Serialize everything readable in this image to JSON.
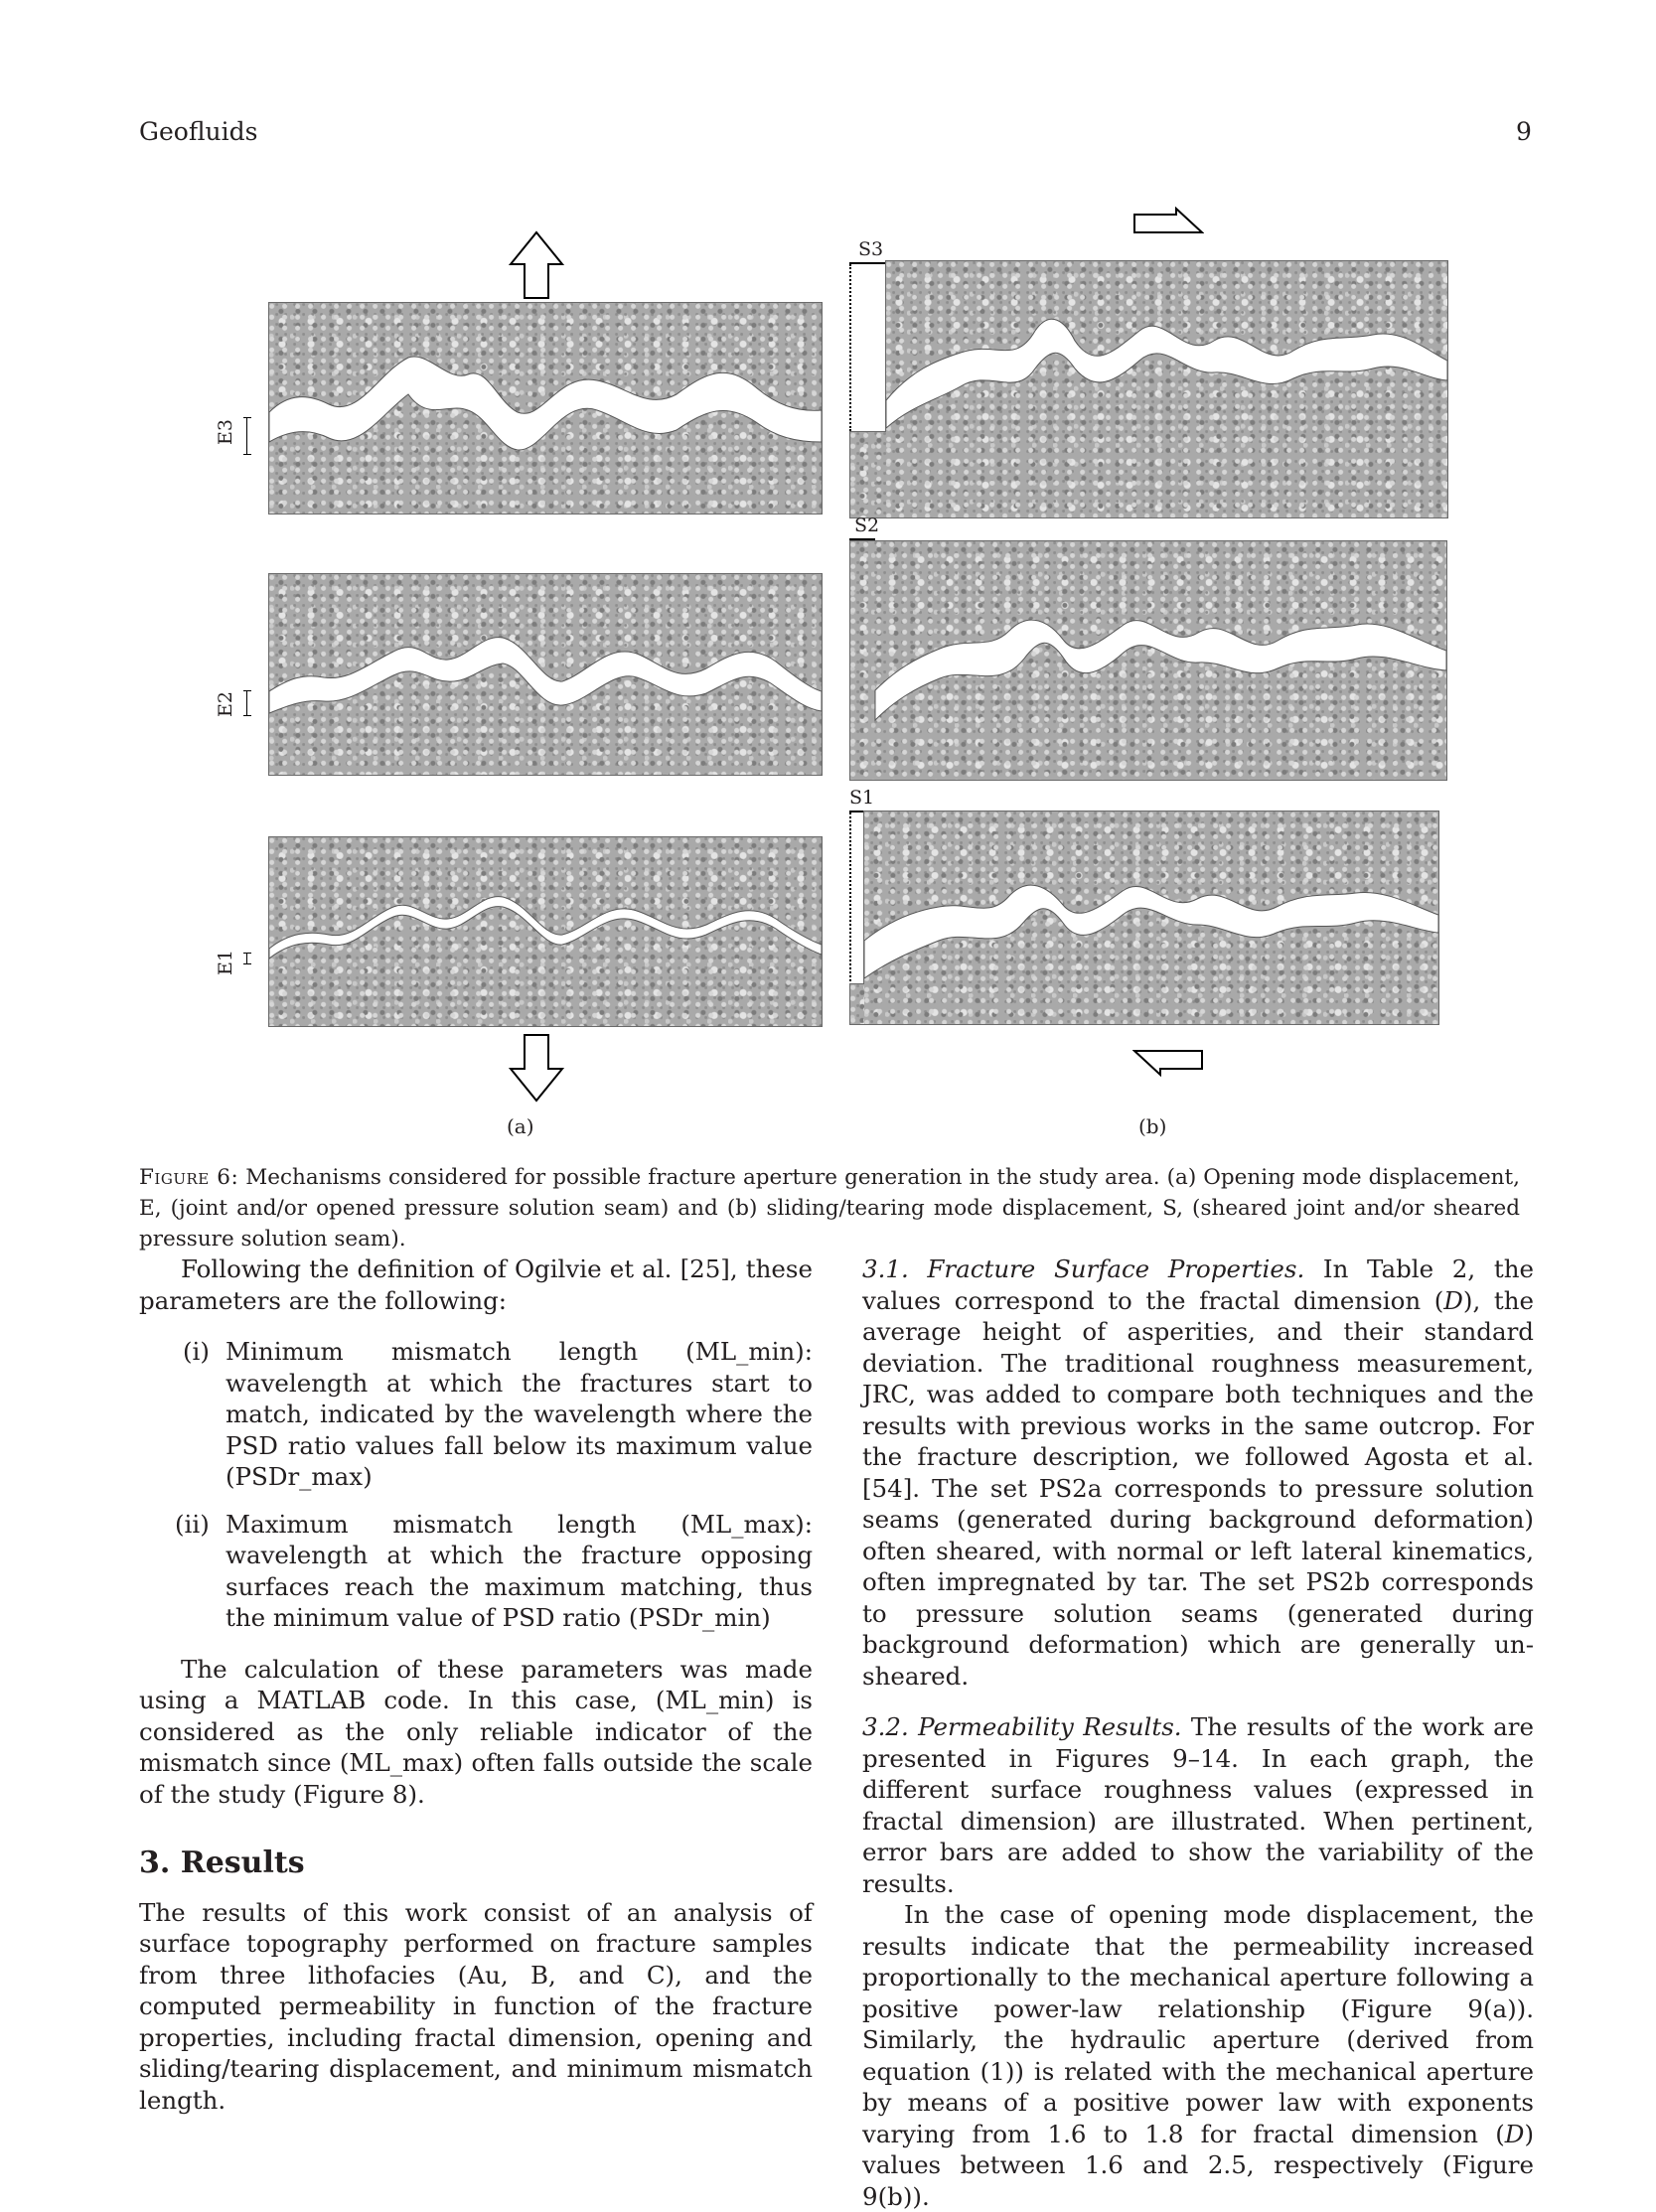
{
  "header": {
    "journal": "Geofluids",
    "page": "9"
  },
  "figure": {
    "panel_a_label": "(a)",
    "panel_b_label": "(b)",
    "opening_labels": [
      "E3",
      "E2",
      "E1"
    ],
    "sliding_labels": [
      "S3",
      "S2",
      "S1"
    ],
    "caption_label": "Figure 6:",
    "caption_text": "Mechanisms considered for possible fracture aperture generation in the study area. (a) Opening mode displacement, E, (joint and/or opened pressure solution seam) and (b) sliding/tearing mode displacement, S, (sheared joint and/or sheared pressure solution seam)."
  },
  "left_column": {
    "intro": "Following the definition of Ogilvie et al. [25], these parameters are the following:",
    "list": [
      {
        "num": "(i)",
        "text": "Minimum mismatch length (ML_min): wavelength at which the fractures start to match, indicated by the wavelength where the PSD ratio values fall below its maximum value (PSDr_max)"
      },
      {
        "num": "(ii)",
        "text": "Maximum mismatch length (ML_max): wavelength at which the fracture opposing surfaces reach the maximum matching, thus the minimum value of PSD ratio (PSDr_min)"
      }
    ],
    "calc": "The calculation of these parameters was made using a MATLAB code. In this case, (ML_min) is considered as the only reliable indicator of the mismatch since (ML_max) often falls outside the scale of the study (Figure 8).",
    "section_heading": "3. Results",
    "results": "The results of this work consist of an analysis of surface topography performed on fracture samples from three lithofacies (Au, B, and C), and the computed permeability in function of the fracture properties, including fractal dimension, opening and sliding/tearing displacement, and minimum mismatch length."
  },
  "right_column": {
    "s31_title": "3.1. Fracture Surface Properties.",
    "s31_a": " In Table 2, the values correspond to the fractal dimension (",
    "s31_D": "D",
    "s31_b": "), the average height of asperities, and their standard deviation. The traditional roughness measurement, JRC, was added to compare both techniques and the results with previous works in the same outcrop. For the fracture description, we followed Agosta et al. [54]. The set PS2a corresponds to pressure solution seams (generated during background deformation) often sheared, with normal or left lateral kinematics, often impregnated by tar. The set PS2b corresponds to pressure solution seams (generated during background deformation) which are generally un-sheared.",
    "s32_title": "3.2. Permeability Results.",
    "s32_text": " The results of the work are presented in Figures 9–14. In each graph, the different surface roughness values (expressed in fractal dimension) are illustrated. When pertinent, error bars are added to show the variability of the results.",
    "p3_a": "In the case of opening mode displacement, the results indicate that the permeability increased proportionally to the mechanical aperture following a positive power-law relationship (Figure 9(a)). Similarly, the hydraulic aperture (derived from equation (1)) is related with the mechanical aperture by means of a positive power law with exponents varying from 1.6 to 1.8 for fractal dimension (",
    "p3_D1": "D",
    "p3_b": ") values between 1.6 and 2.5, respectively (Figure 9(b))."
  }
}
